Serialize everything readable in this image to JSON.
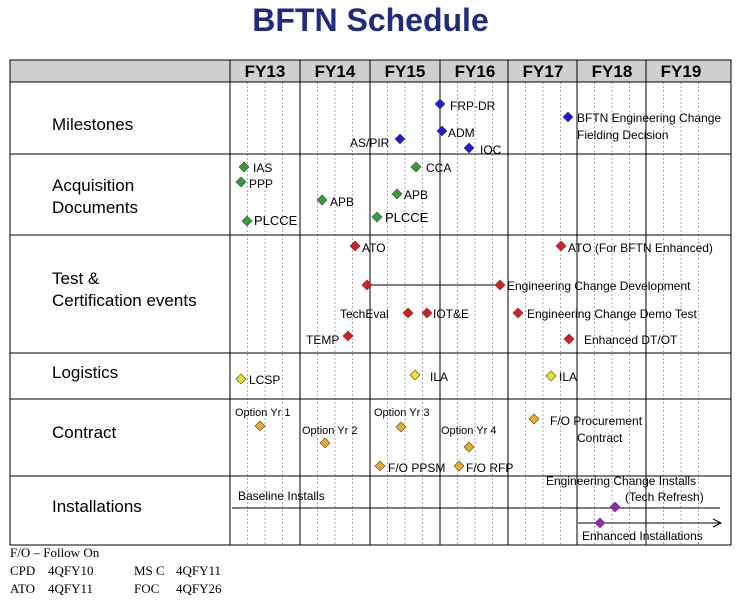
{
  "title": "BFTN Schedule",
  "fiscal_years": [
    "FY13",
    "FY14",
    "FY15",
    "FY16",
    "FY17",
    "FY18",
    "FY19"
  ],
  "rows": [
    {
      "label_lines": [
        "Milestones"
      ]
    },
    {
      "label_lines": [
        "Acquisition",
        "Documents"
      ]
    },
    {
      "label_lines": [
        "Test &",
        "Certification events"
      ]
    },
    {
      "label_lines": [
        "Logistics"
      ]
    },
    {
      "label_lines": [
        "Contract"
      ]
    },
    {
      "label_lines": [
        "Installations"
      ]
    }
  ],
  "colors": {
    "milestone": "#1a1adc",
    "document": "#2fa12f",
    "test": "#e41a1a",
    "logistics": "#f0e020",
    "contract": "#f0a820",
    "installation": "#9a20c8",
    "header_bg": "#cfcfcf",
    "title": "#1f2a86"
  },
  "annotations": [
    {
      "text": "FRP-DR"
    },
    {
      "text": "BFTN Engineering Change"
    },
    {
      "text": "Fielding Decision"
    },
    {
      "text": "ADM"
    },
    {
      "text": "AS/PIR"
    },
    {
      "text": "IOC"
    },
    {
      "text": "IAS"
    },
    {
      "text": "PPP"
    },
    {
      "text": "CCA"
    },
    {
      "text": "APB"
    },
    {
      "text": "APB"
    },
    {
      "text": "PLCCE"
    },
    {
      "text": "PLCCE"
    },
    {
      "text": "ATO"
    },
    {
      "text": "ATO (For BFTN Enhanced)"
    },
    {
      "text": "Engineering Change Development"
    },
    {
      "text": "TechEval"
    },
    {
      "text": "IOT&E"
    },
    {
      "text": "Engineering Change Demo Test"
    },
    {
      "text": "TEMP"
    },
    {
      "text": "Enhanced DT/OT"
    },
    {
      "text": "LCSP"
    },
    {
      "text": "ILA"
    },
    {
      "text": "ILA"
    },
    {
      "text": "Option Yr 1"
    },
    {
      "text": "Option Yr 3"
    },
    {
      "text": "F/O Procurement"
    },
    {
      "text": "Contract"
    },
    {
      "text": "Option Yr 2"
    },
    {
      "text": "Option Yr 4"
    },
    {
      "text": "F/O PPSM"
    },
    {
      "text": "F/O RFP"
    },
    {
      "text": "Engineering Change Installs"
    },
    {
      "text": "(Tech Refresh)"
    },
    {
      "text": "Baseline Installs"
    },
    {
      "text": "Enhanced Installations"
    }
  ],
  "footer": {
    "note": "F/O – Follow On",
    "abbrevs": [
      {
        "key": "CPD",
        "val": "4QFY10"
      },
      {
        "key": "MS C",
        "val": "4QFY11"
      },
      {
        "key": "ATO",
        "val": "4QFY11"
      },
      {
        "key": "FOC",
        "val": "4QFY26"
      }
    ]
  }
}
